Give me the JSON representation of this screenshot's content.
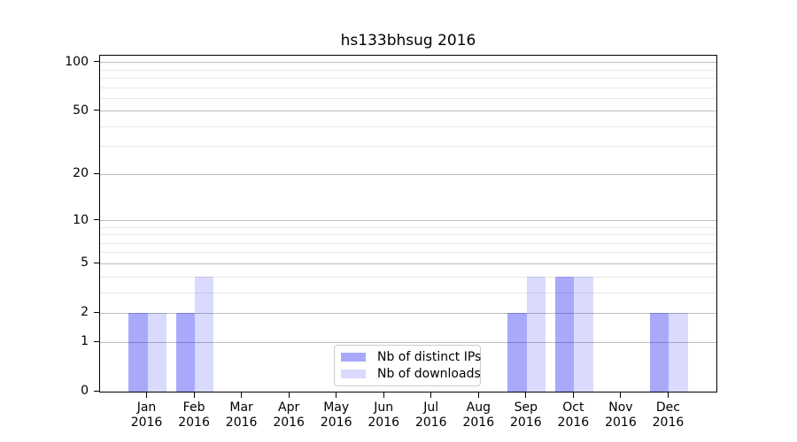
{
  "title": "hs133bhsug 2016",
  "chart_data": {
    "type": "bar",
    "title": "hs133bhsug 2016",
    "categories": [
      "Jan",
      "Feb",
      "Mar",
      "Apr",
      "May",
      "Jun",
      "Jul",
      "Aug",
      "Sep",
      "Oct",
      "Nov",
      "Dec"
    ],
    "x_tick_year": "2016",
    "series": [
      {
        "name": "Nb of distinct IPs",
        "color": "rgba(10,10,245,0.35)",
        "values": [
          2,
          2,
          0,
          0,
          0,
          0,
          0,
          0,
          2,
          4,
          0,
          2
        ]
      },
      {
        "name": "Nb of downloads",
        "color": "rgba(10,10,245,0.15)",
        "values": [
          2,
          4,
          0,
          0,
          0,
          0,
          0,
          0,
          4,
          4,
          0,
          2
        ]
      }
    ],
    "yscale": "log1p",
    "ylim": [
      0,
      110
    ],
    "xlim": [
      -1,
      12
    ],
    "bar_width": 0.4,
    "bar_offsets": [
      -0.2,
      0.2
    ],
    "major_ticks": [
      0,
      1,
      2,
      5,
      10,
      20,
      50,
      100
    ],
    "minor_ticks": [
      3,
      4,
      6,
      7,
      8,
      9,
      30,
      40,
      60,
      70,
      80,
      90
    ],
    "grid": {
      "on": true,
      "major_color": "#bdbdbd",
      "minor_color": "#e9e9e9"
    },
    "legend": {
      "position": "lower center"
    }
  }
}
